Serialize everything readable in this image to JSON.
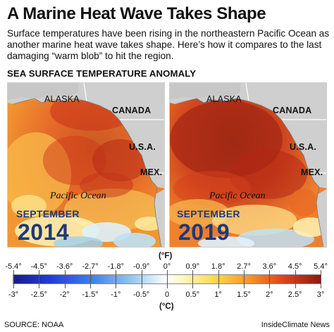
{
  "header": {
    "title": "A Marine Heat Wave Takes Shape",
    "subtitle": "Surface temperatures have been rising in the northeastern Pacific Ocean as another marine heat wave takes shape. Here’s how it compares to the last damaging “warm blob” to hit the region.",
    "section": "SEA SURFACE TEMPERATURE ANOMALY"
  },
  "maps": [
    {
      "month": "SEPTEMBER",
      "year": "2014",
      "labels": {
        "alaska": "ALASKA",
        "canada": "CANADA",
        "usa": "U.S.A.",
        "mex": "MEX.",
        "ocean": "Pacific Ocean"
      }
    },
    {
      "month": "SEPTEMBER",
      "year": "2019",
      "labels": {
        "alaska": "ALASKA",
        "canada": "CANADA",
        "usa": "U.S.A.",
        "mex": "MEX.",
        "ocean": "Pacific Ocean"
      }
    }
  ],
  "legend": {
    "unit_f": "(°F)",
    "unit_c": "(°C)",
    "fahrenheit_ticks": [
      "-5.4°",
      "-4.5°",
      "-3.6°",
      "-2.7°",
      "-1.8°",
      "-0.9°",
      "0°",
      "0.9°",
      "1.8°",
      "2.7°",
      "3.6°",
      "4.5°",
      "5.4°"
    ],
    "celsius_ticks": [
      "-3°",
      "-2.5°",
      "-2°",
      "-1.5°",
      "-1°",
      "-0.5°",
      "0",
      "0.5°",
      "1°",
      "1.5°",
      "2°",
      "2.5°",
      "3°"
    ],
    "colors": [
      "#1a1a8c",
      "#1f3fd6",
      "#3b7de8",
      "#8fc4f0",
      "#ffffff",
      "#ffd54a",
      "#f79a2b",
      "#e0481f",
      "#8e1a0e"
    ]
  },
  "footer": {
    "source": "SOURCE: NOAA",
    "credit": "InsideClimate News"
  }
}
